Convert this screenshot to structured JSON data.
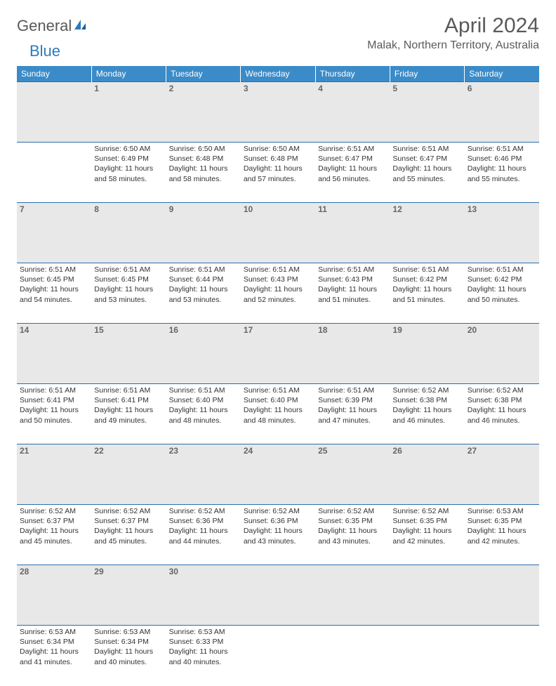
{
  "logo": {
    "word1": "General",
    "word2": "Blue"
  },
  "title": "April 2024",
  "location": "Malak, Northern Territory, Australia",
  "header_bg": "#3b8bc8",
  "daynum_bg": "#e8e8e8",
  "border_color": "#2b6da8",
  "days": [
    "Sunday",
    "Monday",
    "Tuesday",
    "Wednesday",
    "Thursday",
    "Friday",
    "Saturday"
  ],
  "weeks": [
    [
      {
        "n": "",
        "t": ""
      },
      {
        "n": "1",
        "t": "Sunrise: 6:50 AM\nSunset: 6:49 PM\nDaylight: 11 hours and 58 minutes."
      },
      {
        "n": "2",
        "t": "Sunrise: 6:50 AM\nSunset: 6:48 PM\nDaylight: 11 hours and 58 minutes."
      },
      {
        "n": "3",
        "t": "Sunrise: 6:50 AM\nSunset: 6:48 PM\nDaylight: 11 hours and 57 minutes."
      },
      {
        "n": "4",
        "t": "Sunrise: 6:51 AM\nSunset: 6:47 PM\nDaylight: 11 hours and 56 minutes."
      },
      {
        "n": "5",
        "t": "Sunrise: 6:51 AM\nSunset: 6:47 PM\nDaylight: 11 hours and 55 minutes."
      },
      {
        "n": "6",
        "t": "Sunrise: 6:51 AM\nSunset: 6:46 PM\nDaylight: 11 hours and 55 minutes."
      }
    ],
    [
      {
        "n": "7",
        "t": "Sunrise: 6:51 AM\nSunset: 6:45 PM\nDaylight: 11 hours and 54 minutes."
      },
      {
        "n": "8",
        "t": "Sunrise: 6:51 AM\nSunset: 6:45 PM\nDaylight: 11 hours and 53 minutes."
      },
      {
        "n": "9",
        "t": "Sunrise: 6:51 AM\nSunset: 6:44 PM\nDaylight: 11 hours and 53 minutes."
      },
      {
        "n": "10",
        "t": "Sunrise: 6:51 AM\nSunset: 6:43 PM\nDaylight: 11 hours and 52 minutes."
      },
      {
        "n": "11",
        "t": "Sunrise: 6:51 AM\nSunset: 6:43 PM\nDaylight: 11 hours and 51 minutes."
      },
      {
        "n": "12",
        "t": "Sunrise: 6:51 AM\nSunset: 6:42 PM\nDaylight: 11 hours and 51 minutes."
      },
      {
        "n": "13",
        "t": "Sunrise: 6:51 AM\nSunset: 6:42 PM\nDaylight: 11 hours and 50 minutes."
      }
    ],
    [
      {
        "n": "14",
        "t": "Sunrise: 6:51 AM\nSunset: 6:41 PM\nDaylight: 11 hours and 50 minutes."
      },
      {
        "n": "15",
        "t": "Sunrise: 6:51 AM\nSunset: 6:41 PM\nDaylight: 11 hours and 49 minutes."
      },
      {
        "n": "16",
        "t": "Sunrise: 6:51 AM\nSunset: 6:40 PM\nDaylight: 11 hours and 48 minutes."
      },
      {
        "n": "17",
        "t": "Sunrise: 6:51 AM\nSunset: 6:40 PM\nDaylight: 11 hours and 48 minutes."
      },
      {
        "n": "18",
        "t": "Sunrise: 6:51 AM\nSunset: 6:39 PM\nDaylight: 11 hours and 47 minutes."
      },
      {
        "n": "19",
        "t": "Sunrise: 6:52 AM\nSunset: 6:38 PM\nDaylight: 11 hours and 46 minutes."
      },
      {
        "n": "20",
        "t": "Sunrise: 6:52 AM\nSunset: 6:38 PM\nDaylight: 11 hours and 46 minutes."
      }
    ],
    [
      {
        "n": "21",
        "t": "Sunrise: 6:52 AM\nSunset: 6:37 PM\nDaylight: 11 hours and 45 minutes."
      },
      {
        "n": "22",
        "t": "Sunrise: 6:52 AM\nSunset: 6:37 PM\nDaylight: 11 hours and 45 minutes."
      },
      {
        "n": "23",
        "t": "Sunrise: 6:52 AM\nSunset: 6:36 PM\nDaylight: 11 hours and 44 minutes."
      },
      {
        "n": "24",
        "t": "Sunrise: 6:52 AM\nSunset: 6:36 PM\nDaylight: 11 hours and 43 minutes."
      },
      {
        "n": "25",
        "t": "Sunrise: 6:52 AM\nSunset: 6:35 PM\nDaylight: 11 hours and 43 minutes."
      },
      {
        "n": "26",
        "t": "Sunrise: 6:52 AM\nSunset: 6:35 PM\nDaylight: 11 hours and 42 minutes."
      },
      {
        "n": "27",
        "t": "Sunrise: 6:53 AM\nSunset: 6:35 PM\nDaylight: 11 hours and 42 minutes."
      }
    ],
    [
      {
        "n": "28",
        "t": "Sunrise: 6:53 AM\nSunset: 6:34 PM\nDaylight: 11 hours and 41 minutes."
      },
      {
        "n": "29",
        "t": "Sunrise: 6:53 AM\nSunset: 6:34 PM\nDaylight: 11 hours and 40 minutes."
      },
      {
        "n": "30",
        "t": "Sunrise: 6:53 AM\nSunset: 6:33 PM\nDaylight: 11 hours and 40 minutes."
      },
      {
        "n": "",
        "t": ""
      },
      {
        "n": "",
        "t": ""
      },
      {
        "n": "",
        "t": ""
      },
      {
        "n": "",
        "t": ""
      }
    ]
  ]
}
